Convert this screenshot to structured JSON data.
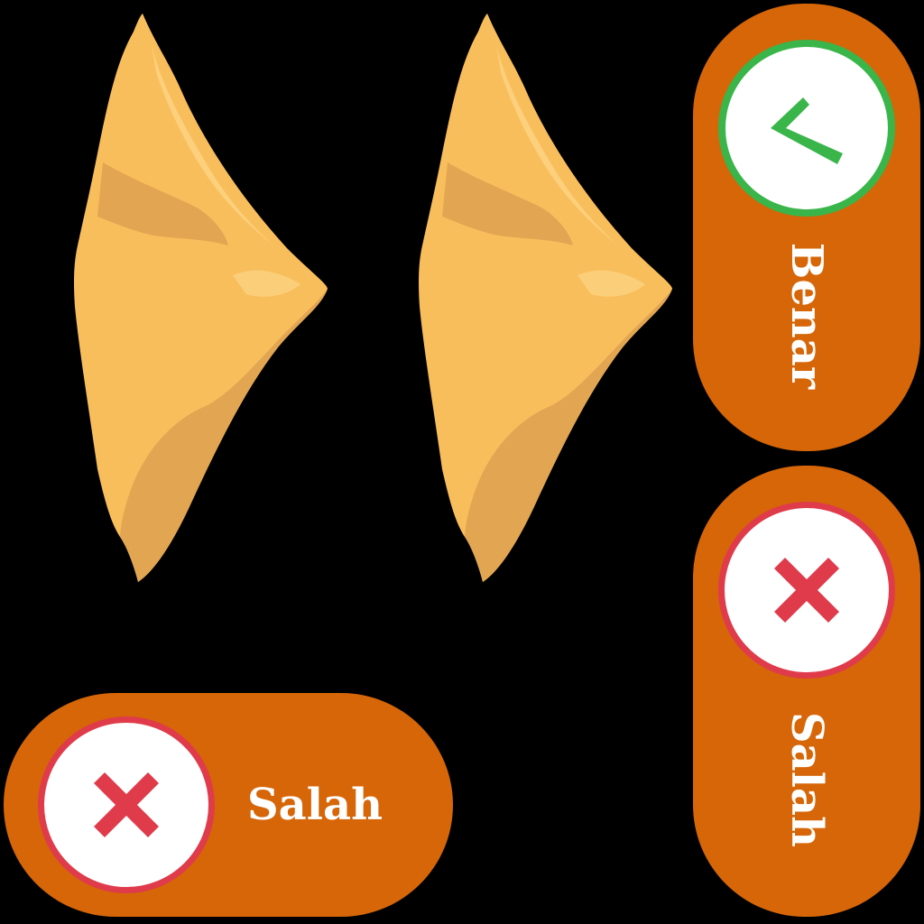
{
  "colors": {
    "background": "#000000",
    "button_fill": "#D66608",
    "correct_green": "#39B54A",
    "wrong_red": "#DF3B4A",
    "pastry_light": "#F9BE5C",
    "pastry_shadow": "#E2A552",
    "pastry_highlight": "#FCD587"
  },
  "sprites": [
    {
      "icon": "samosa-icon"
    },
    {
      "icon": "samosa-icon"
    }
  ],
  "buttons": {
    "benar": {
      "label": "Benar",
      "icon": "check-icon"
    },
    "salah_vertical": {
      "label": "Salah",
      "icon": "x-icon"
    },
    "salah_horizontal": {
      "label": "Salah",
      "icon": "x-icon"
    }
  }
}
